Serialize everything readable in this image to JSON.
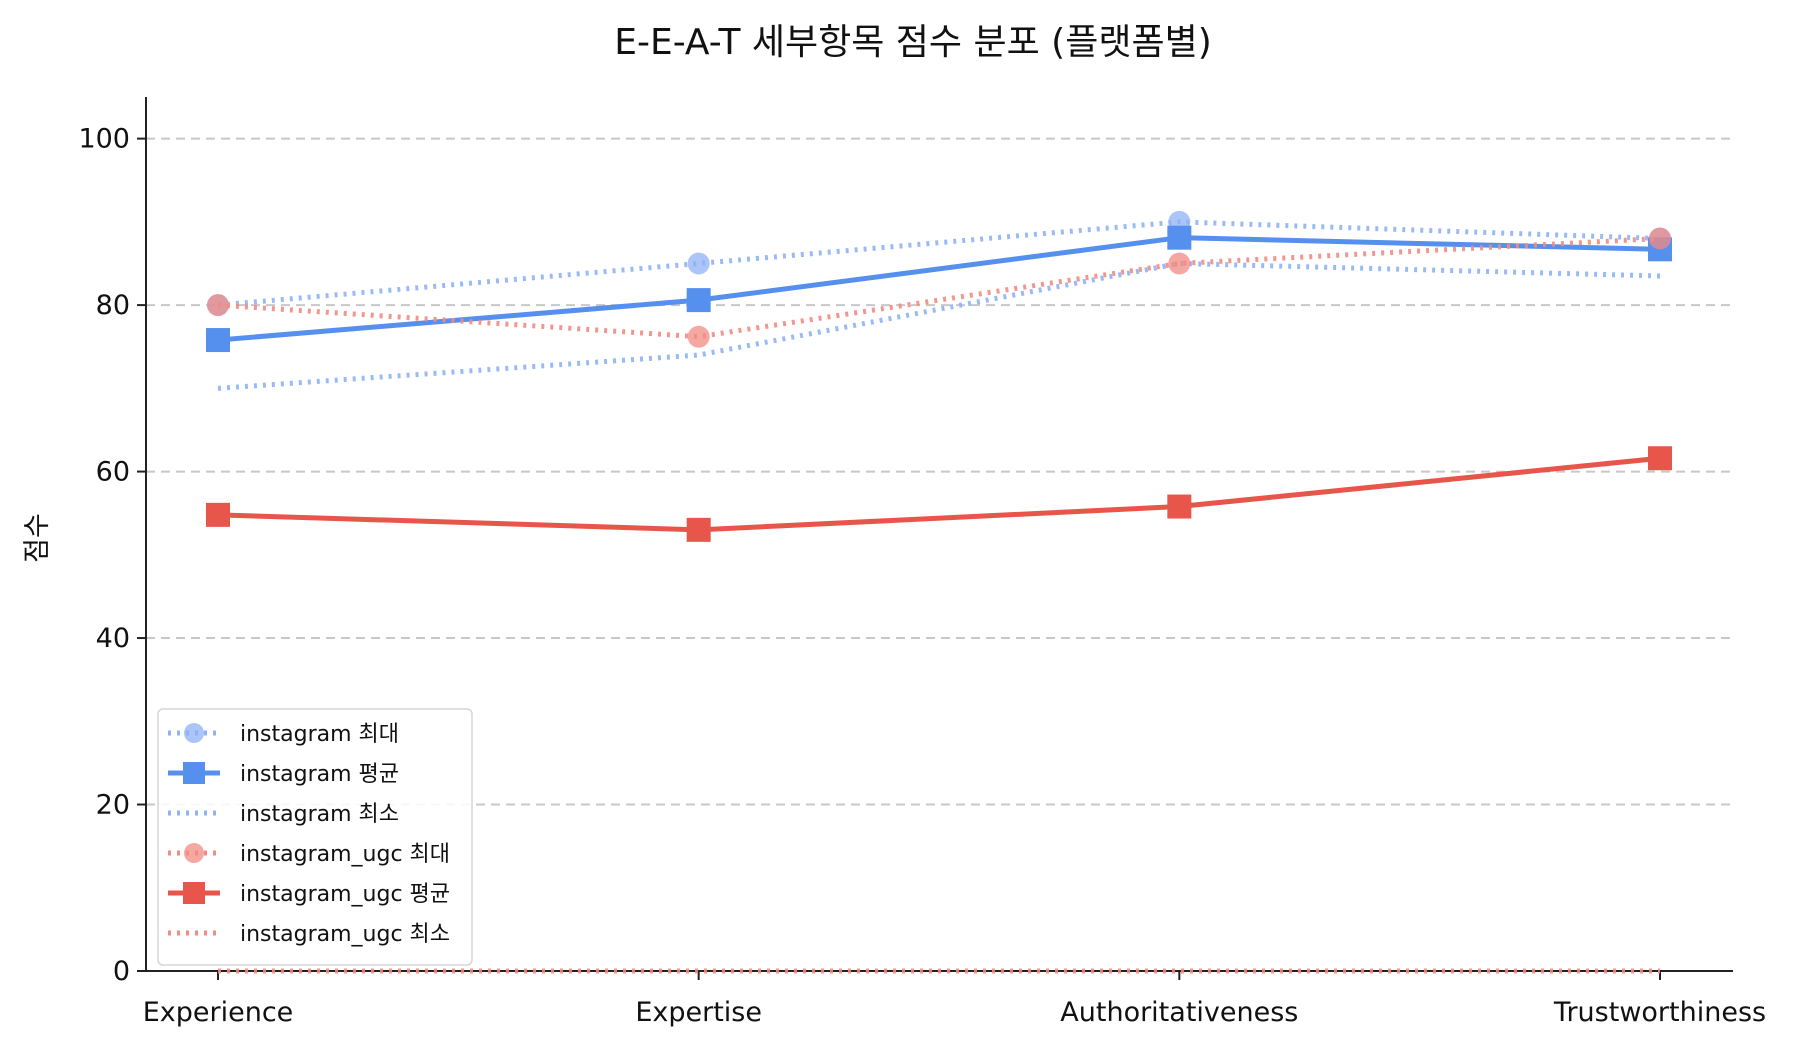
{
  "chart_data": {
    "type": "line",
    "title": "E-E-A-T 세부항목 점수 분포 (플랫폼별)",
    "xlabel": "",
    "ylabel": "점수",
    "categories": [
      "Experience",
      "Expertise",
      "Authoritativeness",
      "Trustworthiness"
    ],
    "ylim": [
      0,
      105
    ],
    "yticks": [
      0,
      20,
      40,
      60,
      80,
      100
    ],
    "grid": "y-dashed",
    "legend_position": "lower-left",
    "series": [
      {
        "name": "instagram 최대",
        "values": [
          80,
          85,
          90,
          88
        ],
        "color": "#8fb2f5",
        "style": "dotted",
        "marker": "circle"
      },
      {
        "name": "instagram 평균",
        "values": [
          75.8,
          80.6,
          88.1,
          86.7
        ],
        "color": "#5590ee",
        "style": "solid",
        "marker": "square"
      },
      {
        "name": "instagram 최소",
        "values": [
          70,
          74,
          85,
          83.5
        ],
        "color": "#8fb2f5",
        "style": "dotted",
        "marker": "none"
      },
      {
        "name": "instagram_ugc 최대",
        "values": [
          80,
          76.2,
          85,
          88
        ],
        "color": "#f28b82",
        "style": "dotted",
        "marker": "circle"
      },
      {
        "name": "instagram_ugc 평균",
        "values": [
          54.8,
          53,
          55.8,
          61.6
        ],
        "color": "#e8554a",
        "style": "solid",
        "marker": "square"
      },
      {
        "name": "instagram_ugc 최소",
        "values": [
          0,
          0,
          0,
          0
        ],
        "color": "#f28b82",
        "style": "dotted",
        "marker": "none"
      }
    ]
  }
}
